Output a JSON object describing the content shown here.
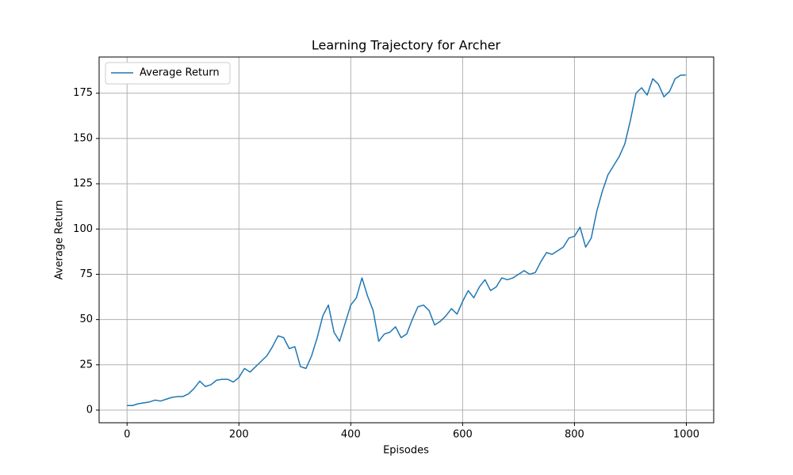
{
  "chart_data": {
    "type": "line",
    "title": "Learning Trajectory for Archer",
    "xlabel": "Episodes",
    "ylabel": "Average Return",
    "x": [
      0,
      10,
      20,
      30,
      40,
      50,
      60,
      70,
      80,
      90,
      100,
      110,
      120,
      130,
      140,
      150,
      160,
      170,
      180,
      190,
      200,
      210,
      220,
      230,
      240,
      250,
      260,
      270,
      280,
      290,
      300,
      310,
      320,
      330,
      340,
      350,
      360,
      370,
      380,
      390,
      400,
      410,
      420,
      430,
      440,
      450,
      460,
      470,
      480,
      490,
      500,
      510,
      520,
      530,
      540,
      550,
      560,
      570,
      580,
      590,
      600,
      610,
      620,
      630,
      640,
      650,
      660,
      670,
      680,
      690,
      700,
      710,
      720,
      730,
      740,
      750,
      760,
      770,
      780,
      790,
      800,
      810,
      820,
      830,
      840,
      850,
      860,
      870,
      880,
      890,
      900,
      910,
      920,
      930,
      940,
      950,
      960,
      970,
      980,
      990,
      999
    ],
    "series": [
      {
        "name": "Average Return",
        "color": "#1f77b4",
        "values": [
          2.5,
          2.5,
          3.5,
          4,
          4.5,
          5.5,
          5,
          6,
          7,
          7.5,
          7.5,
          9,
          12,
          16,
          13,
          14,
          16.5,
          17,
          17,
          15.5,
          18,
          23,
          21,
          24,
          27,
          30,
          35,
          41,
          40,
          34,
          35,
          24,
          23,
          30,
          40,
          52,
          58,
          43,
          38,
          48,
          58,
          62,
          73,
          63,
          55,
          38,
          42,
          43,
          46,
          40,
          42,
          50,
          57,
          58,
          55,
          47,
          49,
          52,
          56,
          53,
          60,
          66,
          62,
          68,
          72,
          66,
          68,
          73,
          72,
          73,
          75,
          77,
          75,
          76,
          82,
          87,
          86,
          88,
          90,
          95,
          96,
          101,
          90,
          95,
          110,
          121,
          130,
          135,
          140,
          147,
          160,
          175,
          178,
          174,
          183,
          180,
          173,
          176,
          183,
          185,
          185
        ]
      }
    ],
    "xlim": [
      -49.95,
      1048.95
    ],
    "ylim": [
      -7,
      195
    ],
    "xticks": [
      0,
      200,
      400,
      600,
      800,
      1000
    ],
    "yticks": [
      0,
      25,
      50,
      75,
      100,
      125,
      150,
      175
    ],
    "grid": true,
    "legend": "upper left"
  }
}
